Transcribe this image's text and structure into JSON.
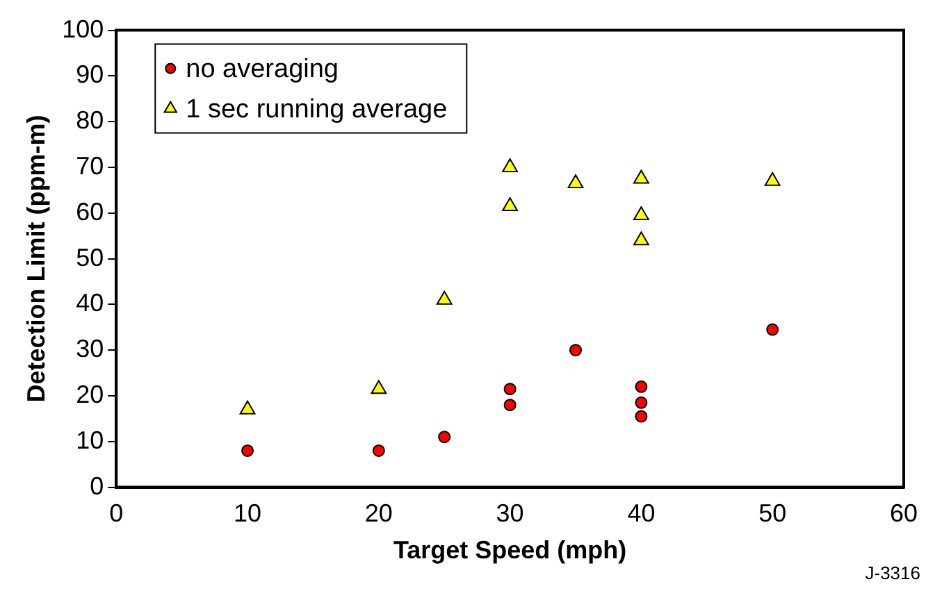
{
  "chart_data": {
    "type": "scatter",
    "xlabel": "Target Speed (mph)",
    "ylabel": "Detection Limit (ppm-m)",
    "xlim": [
      0,
      60
    ],
    "xticks": [
      0,
      10,
      20,
      30,
      40,
      50,
      60
    ],
    "ylim": [
      0,
      100
    ],
    "yticks": [
      0,
      10,
      20,
      30,
      40,
      50,
      60,
      70,
      80,
      90,
      100
    ],
    "grid": false,
    "legend": "top left",
    "annotations": [
      "J-3316"
    ],
    "series": [
      {
        "name": "no averaging",
        "color": "#ff0000",
        "marker": "circle",
        "x": [
          10,
          20,
          25,
          30,
          30,
          35,
          40,
          40,
          40,
          50
        ],
        "values": [
          8,
          8,
          11,
          21.5,
          18,
          30,
          22,
          18.5,
          15.5,
          34.5
        ]
      },
      {
        "name": "1 sec running average",
        "color": "#ffff00",
        "marker": "triangle",
        "x": [
          10,
          20,
          25,
          30,
          30,
          35,
          40,
          40,
          40,
          50
        ],
        "values": [
          17,
          21.5,
          41,
          70,
          61.5,
          66.5,
          67.5,
          59.5,
          54,
          67
        ]
      }
    ]
  }
}
